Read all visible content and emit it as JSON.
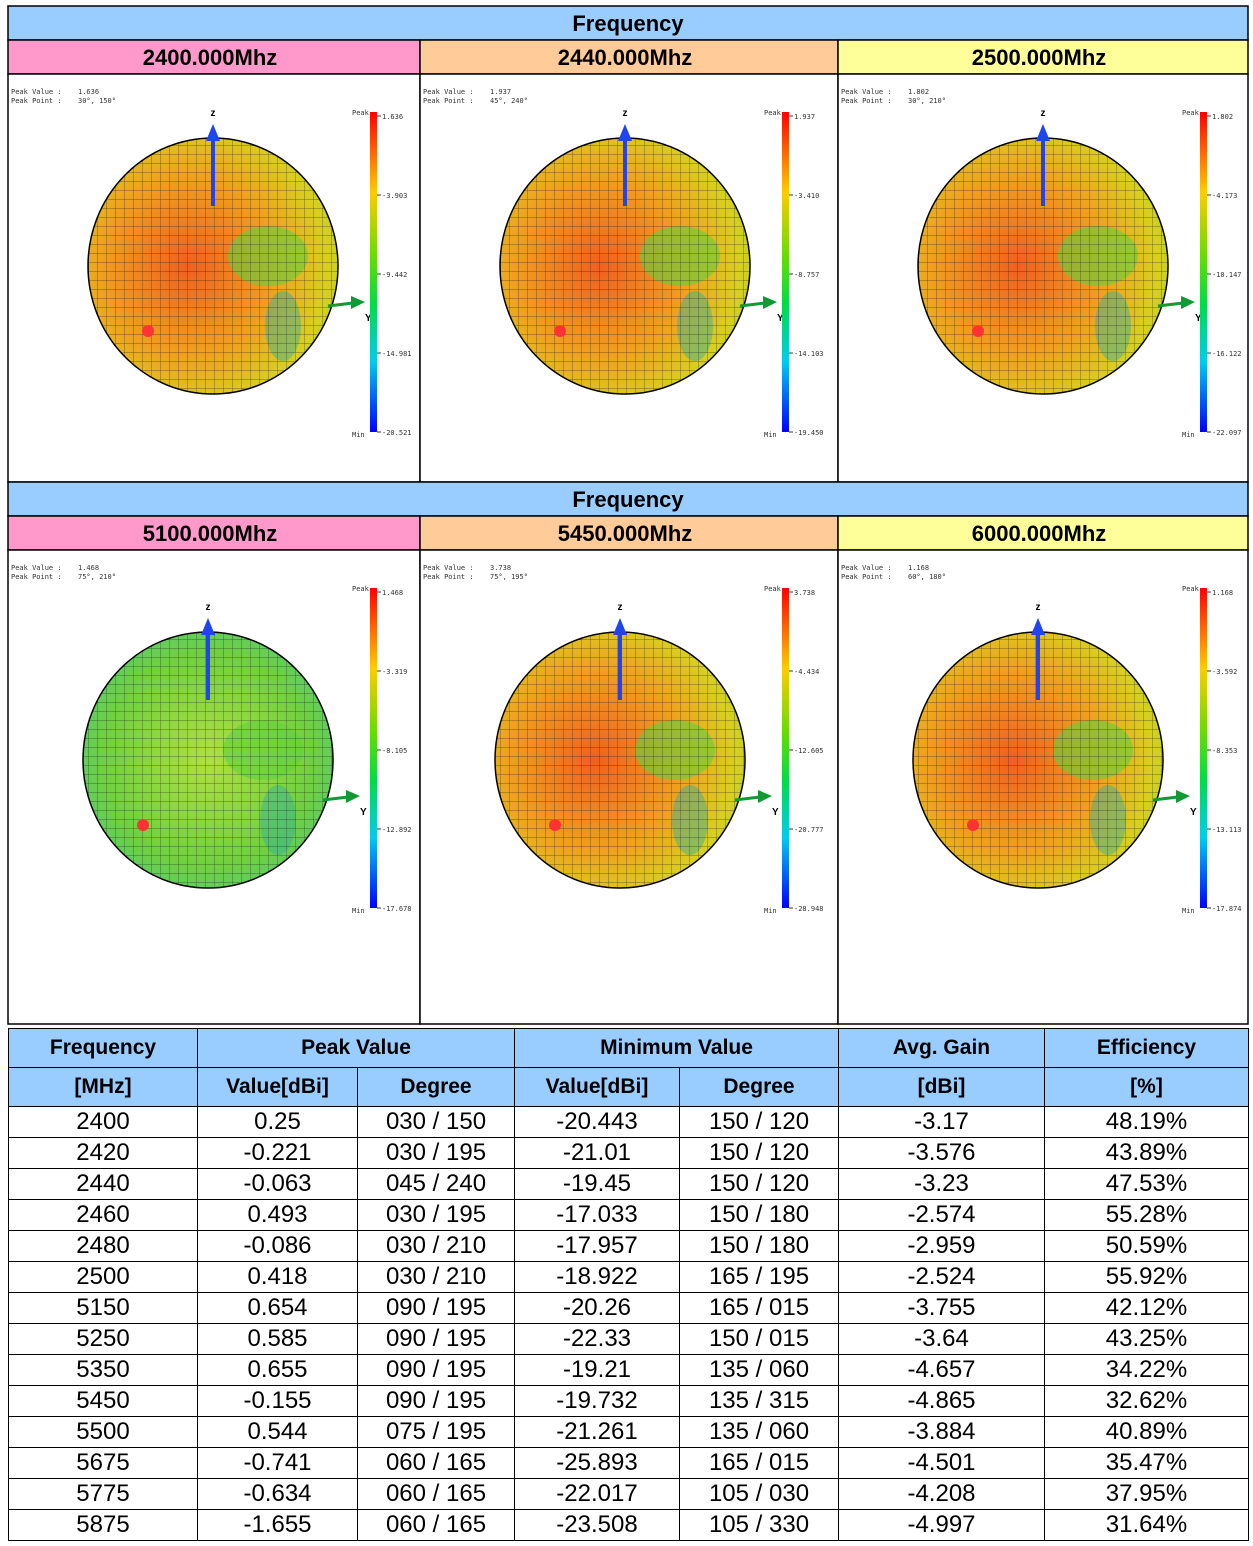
{
  "sections": [
    {
      "header": "Frequency",
      "panels": [
        {
          "frequency": "2400.000Mhz",
          "peak_value": "1.636",
          "peak_point": "30°, 150°",
          "scale": [
            "1.636",
            "-3.903",
            "-9.442",
            "-14.981",
            "-20.521"
          ]
        },
        {
          "frequency": "2440.000Mhz",
          "peak_value": "1.937",
          "peak_point": "45°, 240°",
          "scale": [
            "1.937",
            "-3.410",
            "-8.757",
            "-14.103",
            "-19.450"
          ]
        },
        {
          "frequency": "2500.000Mhz",
          "peak_value": "1.802",
          "peak_point": "30°, 210°",
          "scale": [
            "1.802",
            "-4.173",
            "-10.147",
            "-16.122",
            "-22.097"
          ]
        }
      ]
    },
    {
      "header": "Frequency",
      "panels": [
        {
          "frequency": "5100.000Mhz",
          "peak_value": "1.468",
          "peak_point": "75°, 210°",
          "scale": [
            "1.468",
            "-3.319",
            "-8.105",
            "-12.892",
            "-17.678"
          ]
        },
        {
          "frequency": "5450.000Mhz",
          "peak_value": "3.738",
          "peak_point": "75°, 195°",
          "scale": [
            "3.738",
            "-4.434",
            "-12.605",
            "-20.777",
            "-28.948"
          ]
        },
        {
          "frequency": "6000.000Mhz",
          "peak_value": "1.168",
          "peak_point": "60°, 180°",
          "scale": [
            "1.168",
            "-3.592",
            "-8.353",
            "-13.113",
            "-17.874"
          ]
        }
      ]
    }
  ],
  "plot_labels": {
    "peak_value": "Peak Value :",
    "peak_point": "Peak Point :",
    "peak": "Peak",
    "min": "Min",
    "z": "z",
    "y": "Y"
  },
  "table": {
    "header_top": [
      "Frequency",
      "Peak Value",
      "Minimum Value",
      "Avg. Gain",
      "Efficiency"
    ],
    "header_units": [
      "[MHz]",
      "Value[dBi]",
      "Degree",
      "Value[dBi]",
      "Degree",
      "[dBi]",
      "[%]"
    ],
    "rows": [
      [
        "2400",
        "0.25",
        "030 / 150",
        "-20.443",
        "150 / 120",
        "-3.17",
        "48.19%"
      ],
      [
        "2420",
        "-0.221",
        "030 / 195",
        "-21.01",
        "150 / 120",
        "-3.576",
        "43.89%"
      ],
      [
        "2440",
        "-0.063",
        "045 / 240",
        "-19.45",
        "150 / 120",
        "-3.23",
        "47.53%"
      ],
      [
        "2460",
        "0.493",
        "030 / 195",
        "-17.033",
        "150 / 180",
        "-2.574",
        "55.28%"
      ],
      [
        "2480",
        "-0.086",
        "030 / 210",
        "-17.957",
        "150 / 180",
        "-2.959",
        "50.59%"
      ],
      [
        "2500",
        "0.418",
        "030 / 210",
        "-18.922",
        "165 / 195",
        "-2.524",
        "55.92%"
      ],
      [
        "5150",
        "0.654",
        "090 / 195",
        "-20.26",
        "165 / 015",
        "-3.755",
        "42.12%"
      ],
      [
        "5250",
        "0.585",
        "090 / 195",
        "-22.33",
        "150 / 015",
        "-3.64",
        "43.25%"
      ],
      [
        "5350",
        "0.655",
        "090 / 195",
        "-19.21",
        "135 / 060",
        "-4.657",
        "34.22%"
      ],
      [
        "5450",
        "-0.155",
        "090 / 195",
        "-19.732",
        "135 / 315",
        "-4.865",
        "32.62%"
      ],
      [
        "5500",
        "0.544",
        "075 / 195",
        "-21.261",
        "135 / 060",
        "-3.884",
        "40.89%"
      ],
      [
        "5675",
        "-0.741",
        "060 / 165",
        "-25.893",
        "165 / 015",
        "-4.501",
        "35.47%"
      ],
      [
        "5775",
        "-0.634",
        "060 / 165",
        "-22.017",
        "105 / 030",
        "-4.208",
        "37.95%"
      ],
      [
        "5875",
        "-1.655",
        "060 / 165",
        "-23.508",
        "105 / 330",
        "-4.997",
        "31.64%"
      ]
    ]
  }
}
